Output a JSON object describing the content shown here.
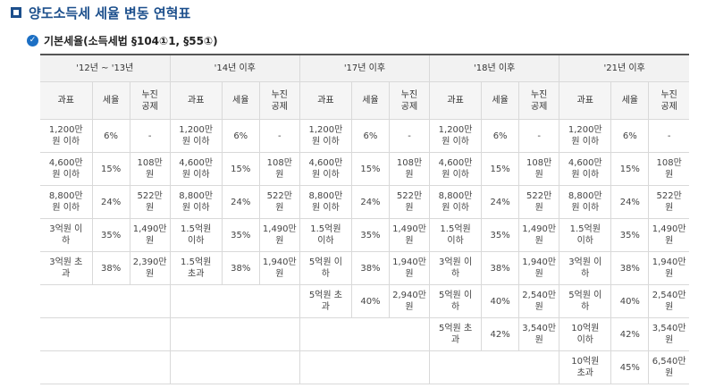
{
  "title": "양도소득세 세율 변동 연혁표",
  "subtitle": "기본세율(소득세법 §104①1, §55①)",
  "periods": [
    "'12년 ~ '13년",
    "'14년 이후",
    "'17년 이후",
    "'18년 이후",
    "'21년 이후"
  ],
  "sub_headers": [
    "과표",
    "세율",
    "누진\n공제"
  ],
  "rows": [
    [
      [
        "1,200만\n원 이하",
        "6%",
        "-"
      ],
      [
        "1,200만\n원 이하",
        "6%",
        "-"
      ],
      [
        "1,200만\n원 이하",
        "6%",
        "-"
      ],
      [
        "1,200만\n원 이하",
        "6%",
        "-"
      ],
      [
        "1,200만\n원 이하",
        "6%",
        "-"
      ]
    ],
    [
      [
        "4,600만\n원 이하",
        "15%",
        "108만\n원"
      ],
      [
        "4,600만\n원 이하",
        "15%",
        "108만\n원"
      ],
      [
        "4,600만\n원 이하",
        "15%",
        "108만\n원"
      ],
      [
        "4,600만\n원 이하",
        "15%",
        "108만\n원"
      ],
      [
        "4,600만\n원 이하",
        "15%",
        "108만\n원"
      ]
    ],
    [
      [
        "8,800만\n원 이하",
        "24%",
        "522만\n원"
      ],
      [
        "8,800만\n원 이하",
        "24%",
        "522만\n원"
      ],
      [
        "8,800만\n원 이하",
        "24%",
        "522만\n원"
      ],
      [
        "8,800만\n원 이하",
        "24%",
        "522만\n원"
      ],
      [
        "8,800만\n원 이하",
        "24%",
        "522만\n원"
      ]
    ],
    [
      [
        "3억원 이\n하",
        "35%",
        "1,490만\n원"
      ],
      [
        "1.5억원\n이하",
        "35%",
        "1,490만\n원"
      ],
      [
        "1.5억원\n이하",
        "35%",
        "1,490만\n원"
      ],
      [
        "1.5억원\n이하",
        "35%",
        "1,490만\n원"
      ],
      [
        "1.5억원\n이하",
        "35%",
        "1,490만\n원"
      ]
    ],
    [
      [
        "3억원 초\n과",
        "38%",
        "2,390만\n원"
      ],
      [
        "1.5억원\n초과",
        "38%",
        "1,940만\n원"
      ],
      [
        "5억원 이\n하",
        "38%",
        "1,940만\n원"
      ],
      [
        "3억원 이\n하",
        "38%",
        "1,940만\n원"
      ],
      [
        "3억원 이\n하",
        "38%",
        "1,940만\n원"
      ]
    ],
    [
      null,
      null,
      [
        "5억원 초\n과",
        "40%",
        "2,940만\n원"
      ],
      [
        "5억원 이\n하",
        "40%",
        "2,540만\n원"
      ],
      [
        "5억원 이\n하",
        "40%",
        "2,540만\n원"
      ]
    ],
    [
      null,
      null,
      null,
      [
        "5억원 초\n과",
        "42%",
        "3,540만\n원"
      ],
      [
        "10억원\n이하",
        "42%",
        "3,540만\n원"
      ]
    ],
    [
      null,
      null,
      null,
      null,
      [
        "10억원\n초과",
        "45%",
        "6,540만\n원"
      ]
    ]
  ]
}
